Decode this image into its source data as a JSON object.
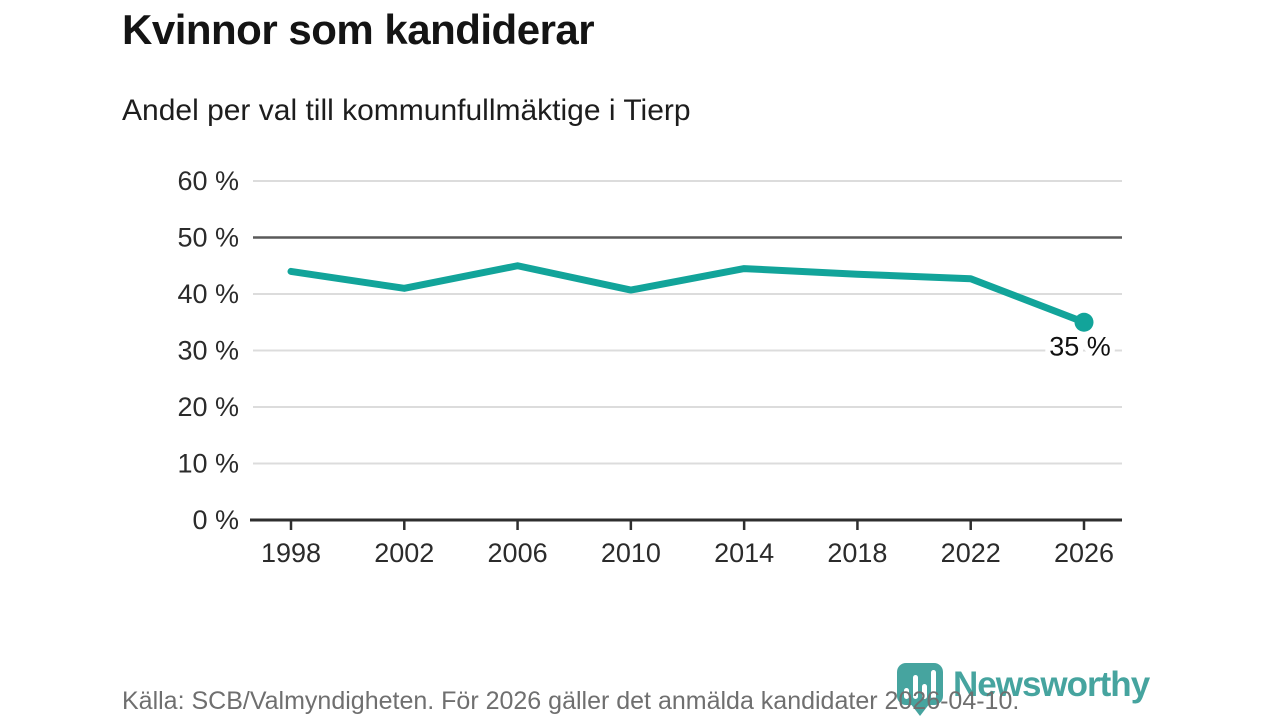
{
  "header": {
    "title": "Kvinnor som kandiderar",
    "subtitle": "Andel per val till kommunfullmäktige i Tierp"
  },
  "chart_data": {
    "type": "line",
    "title": "Kvinnor som kandiderar",
    "subtitle": "Andel per val till kommunfullmäktige i Tierp",
    "categories": [
      "1998",
      "2002",
      "2006",
      "2010",
      "2014",
      "2018",
      "2022",
      "2026"
    ],
    "values": [
      44,
      41,
      45,
      40.7,
      44.5,
      43.5,
      42.7,
      35
    ],
    "end_label": "35 %",
    "xlabel": "",
    "ylabel": "",
    "ylim": [
      0,
      60
    ],
    "ytick_step": 10,
    "ytick_labels": [
      "0 %",
      "10 %",
      "20 %",
      "30 %",
      "40 %",
      "50 %",
      "60 %"
    ],
    "reference_line": 50,
    "grid": true,
    "legend": "none",
    "line_color": "#12a49a",
    "grid_color": "#dcdcdc",
    "reference_color": "#5a5a5a",
    "axis_color": "#2e2e2e"
  },
  "footer": {
    "source": "Källa: SCB/Valmyndigheten. För 2026 gäller det anmälda kandidater 2026-04-10."
  },
  "branding": {
    "logo_text": "Newsworthy",
    "logo_color": "#46a49f",
    "icon": "bar-chart-pin-icon"
  }
}
